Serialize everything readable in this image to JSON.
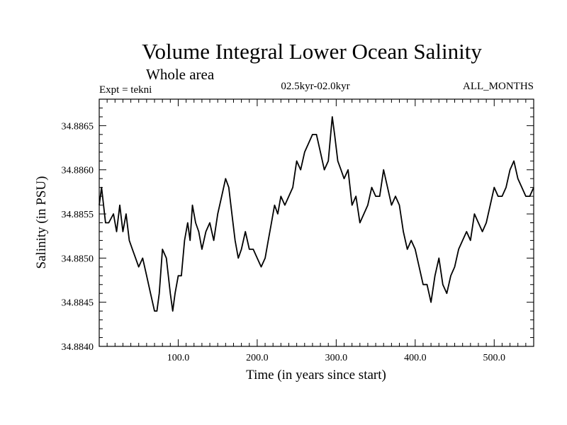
{
  "chart_data": {
    "type": "line",
    "title": "Volume Integral Lower Ocean Salinity",
    "subtitle": "Whole area",
    "experiment_label": "Expt = tekni",
    "period_label": "02.5kyr-02.0kyr",
    "months_label": "ALL_MONTHS",
    "xlabel": "Time (in years since start)",
    "ylabel": "Salinity (in PSU)",
    "xlim": [
      0,
      550
    ],
    "ylim": [
      34.884,
      34.8868
    ],
    "x_ticks": [
      100,
      200,
      300,
      400,
      500
    ],
    "x_tick_labels": [
      "100.0",
      "200.0",
      "300.0",
      "400.0",
      "500.0"
    ],
    "y_ticks": [
      34.884,
      34.8845,
      34.885,
      34.8855,
      34.886,
      34.8865
    ],
    "y_tick_labels": [
      "34.8840",
      "34.8845",
      "34.8850",
      "34.8855",
      "34.8860",
      "34.8865"
    ],
    "grid": false,
    "series": [
      {
        "name": "salinity",
        "x": [
          0,
          3,
          8,
          12,
          18,
          22,
          26,
          30,
          34,
          38,
          42,
          46,
          50,
          55,
          60,
          65,
          70,
          73,
          76,
          80,
          85,
          90,
          93,
          96,
          100,
          104,
          108,
          112,
          115,
          118,
          122,
          126,
          130,
          135,
          140,
          145,
          150,
          155,
          160,
          164,
          168,
          172,
          176,
          180,
          185,
          190,
          195,
          200,
          205,
          210,
          214,
          218,
          222,
          226,
          230,
          235,
          240,
          245,
          250,
          255,
          260,
          265,
          270,
          275,
          280,
          285,
          290,
          295,
          298,
          302,
          306,
          310,
          315,
          320,
          325,
          330,
          335,
          340,
          345,
          350,
          355,
          360,
          365,
          370,
          375,
          380,
          385,
          390,
          395,
          400,
          405,
          410,
          415,
          420,
          425,
          430,
          435,
          440,
          445,
          450,
          455,
          460,
          465,
          470,
          475,
          480,
          485,
          490,
          495,
          500,
          505,
          510,
          515,
          520,
          525,
          530,
          535,
          540,
          545,
          550
        ],
        "values": [
          34.8856,
          34.8858,
          34.8854,
          34.8854,
          34.8855,
          34.8853,
          34.8856,
          34.8853,
          34.8855,
          34.8852,
          34.8851,
          34.885,
          34.8849,
          34.885,
          34.8848,
          34.8846,
          34.8844,
          34.8844,
          34.8846,
          34.8851,
          34.885,
          34.8846,
          34.8844,
          34.8846,
          34.8848,
          34.8848,
          34.8852,
          34.8854,
          34.8852,
          34.8856,
          34.8854,
          34.8853,
          34.8851,
          34.8853,
          34.8854,
          34.8852,
          34.8855,
          34.8857,
          34.8859,
          34.8858,
          34.8855,
          34.8852,
          34.885,
          34.8851,
          34.8853,
          34.8851,
          34.8851,
          34.885,
          34.8849,
          34.885,
          34.8852,
          34.8854,
          34.8856,
          34.8855,
          34.8857,
          34.8856,
          34.8857,
          34.8858,
          34.8861,
          34.886,
          34.8862,
          34.8863,
          34.8864,
          34.8864,
          34.8862,
          34.886,
          34.8861,
          34.8866,
          34.8864,
          34.8861,
          34.886,
          34.8859,
          34.886,
          34.8856,
          34.8857,
          34.8854,
          34.8855,
          34.8856,
          34.8858,
          34.8857,
          34.8857,
          34.886,
          34.8858,
          34.8856,
          34.8857,
          34.8856,
          34.8853,
          34.8851,
          34.8852,
          34.8851,
          34.8849,
          34.8847,
          34.8847,
          34.8845,
          34.8848,
          34.885,
          34.8847,
          34.8846,
          34.8848,
          34.8849,
          34.8851,
          34.8852,
          34.8853,
          34.8852,
          34.8855,
          34.8854,
          34.8853,
          34.8854,
          34.8856,
          34.8858,
          34.8857,
          34.8857,
          34.8858,
          34.886,
          34.8861,
          34.8859,
          34.8858,
          34.8857,
          34.8857,
          34.8858
        ]
      }
    ]
  }
}
